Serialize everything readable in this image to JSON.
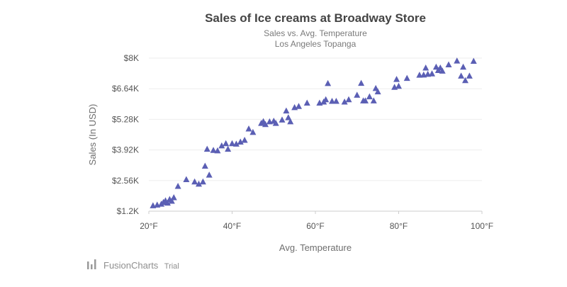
{
  "chart_data": {
    "type": "scatter",
    "title": "Sales of Ice creams at Broadway Store",
    "subtitle_lines": [
      "Sales vs. Avg. Temperature",
      "Los Angeles Topanga"
    ],
    "xlabel": "Avg. Temperature",
    "ylabel": "Sales (In USD)",
    "xlim": [
      20,
      100
    ],
    "ylim": [
      1200,
      8000
    ],
    "x_ticks": [
      20,
      40,
      60,
      80,
      100
    ],
    "x_tick_labels": [
      "20°F",
      "40°F",
      "60°F",
      "80°F",
      "100°F"
    ],
    "y_ticks": [
      1200,
      2560,
      3920,
      5280,
      6640,
      8000
    ],
    "y_tick_labels": [
      "$1.2K",
      "$2.56K",
      "$3.92K",
      "$5.28K",
      "$6.64K",
      "$8K"
    ],
    "grid": true,
    "marker": "triangle",
    "colors": {
      "marker": "#5b5fb4",
      "grid": "#eeeeee",
      "axis": "#cccccc"
    },
    "series": [
      {
        "points": [
          [
            21,
            1440
          ],
          [
            22,
            1470
          ],
          [
            23,
            1510
          ],
          [
            23.5,
            1590
          ],
          [
            24,
            1660
          ],
          [
            24.5,
            1560
          ],
          [
            25,
            1720
          ],
          [
            25.5,
            1640
          ],
          [
            26,
            1800
          ],
          [
            27,
            2300
          ],
          [
            29,
            2600
          ],
          [
            31,
            2500
          ],
          [
            32,
            2400
          ],
          [
            33,
            2500
          ],
          [
            33.5,
            3200
          ],
          [
            34,
            3950
          ],
          [
            34.5,
            2800
          ],
          [
            35.5,
            3900
          ],
          [
            36.5,
            3880
          ],
          [
            37.5,
            4100
          ],
          [
            38.5,
            4200
          ],
          [
            39,
            3950
          ],
          [
            40,
            4200
          ],
          [
            41,
            4180
          ],
          [
            42,
            4270
          ],
          [
            43,
            4350
          ],
          [
            44,
            4850
          ],
          [
            45,
            4700
          ],
          [
            47,
            5100
          ],
          [
            47.5,
            5180
          ],
          [
            48,
            5050
          ],
          [
            49,
            5170
          ],
          [
            50,
            5200
          ],
          [
            50.5,
            5100
          ],
          [
            52,
            5250
          ],
          [
            53,
            5650
          ],
          [
            53.5,
            5350
          ],
          [
            54,
            5170
          ],
          [
            55,
            5800
          ],
          [
            56,
            5850
          ],
          [
            58,
            6000
          ],
          [
            61,
            6000
          ],
          [
            62,
            6050
          ],
          [
            62.5,
            6150
          ],
          [
            63,
            6870
          ],
          [
            64,
            6080
          ],
          [
            65,
            6080
          ],
          [
            67,
            6050
          ],
          [
            68,
            6150
          ],
          [
            70,
            6350
          ],
          [
            71,
            6880
          ],
          [
            71.5,
            6100
          ],
          [
            72,
            6100
          ],
          [
            73,
            6280
          ],
          [
            74,
            6100
          ],
          [
            74.5,
            6650
          ],
          [
            75,
            6500
          ],
          [
            79,
            6700
          ],
          [
            79.5,
            7050
          ],
          [
            80,
            6750
          ],
          [
            82,
            7100
          ],
          [
            85,
            7240
          ],
          [
            86,
            7250
          ],
          [
            86.5,
            7560
          ],
          [
            87,
            7280
          ],
          [
            88,
            7300
          ],
          [
            89,
            7600
          ],
          [
            89.5,
            7450
          ],
          [
            90,
            7560
          ],
          [
            90.5,
            7420
          ],
          [
            92,
            7700
          ],
          [
            94,
            7870
          ],
          [
            95,
            7200
          ],
          [
            95.5,
            7600
          ],
          [
            96,
            7000
          ],
          [
            97,
            7200
          ],
          [
            98,
            7860
          ]
        ]
      }
    ]
  },
  "credit": {
    "brand": "FusionCharts",
    "suffix": "Trial"
  }
}
